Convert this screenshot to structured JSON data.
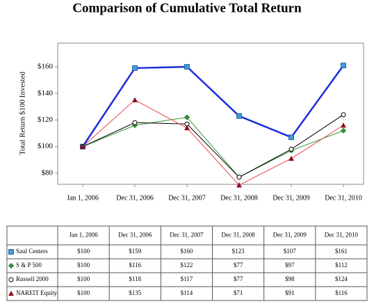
{
  "chart_data": {
    "type": "line",
    "title": "Comparison of Cumulative Total Return",
    "y_label": "Total Return $100 Invested",
    "categories": [
      "Jan 1, 2006",
      "Dec 31, 2006",
      "Dec 31, 2007",
      "Dec 31, 2008",
      "Dec 31, 2009",
      "Dec 31, 2010"
    ],
    "ylim": [
      71.6,
      177.8
    ],
    "yticks": [
      {
        "value": 80,
        "label": "$80"
      },
      {
        "value": 100,
        "label": "$100"
      },
      {
        "value": 120,
        "label": "$120"
      },
      {
        "value": 140,
        "label": "$140"
      },
      {
        "value": 160,
        "label": "$160"
      }
    ],
    "grid": false,
    "series": [
      {
        "name": "Saul Centers",
        "color": "#1a2be0",
        "marker": "square",
        "values": [
          100,
          159,
          160,
          123,
          107,
          161
        ],
        "value_labels": [
          "$100",
          "$159",
          "$160",
          "$123",
          "$107",
          "$161"
        ]
      },
      {
        "name": "S & P 500",
        "color": "#2e9a2e",
        "marker": "diamond",
        "values": [
          100,
          116,
          122,
          77,
          97,
          112
        ],
        "value_labels": [
          "$100",
          "$116",
          "$122",
          "$77",
          "$97",
          "$112"
        ]
      },
      {
        "name": "Russell 2000",
        "color": "#000000",
        "marker": "circle",
        "values": [
          100,
          118,
          117,
          77,
          98,
          124
        ],
        "value_labels": [
          "$100",
          "$118",
          "$117",
          "$77",
          "$98",
          "$124"
        ]
      },
      {
        "name": "NAREIT Equity",
        "color": "#e8424a",
        "marker": "triangle",
        "values": [
          100,
          135,
          114,
          71,
          91,
          116
        ],
        "value_labels": [
          "$100",
          "$135",
          "$114",
          "$71",
          "$91",
          "$116"
        ]
      }
    ]
  }
}
